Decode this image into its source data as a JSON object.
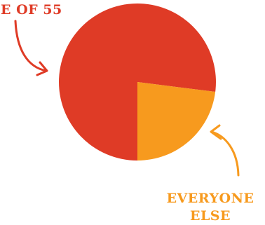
{
  "chart_data": {
    "type": "pie",
    "title": "",
    "slices": [
      {
        "label": "E OF 55",
        "value": 77,
        "color": "#DF3B26"
      },
      {
        "label": "EVERYONE ELSE",
        "value": 23,
        "color": "#F79A1E"
      }
    ],
    "annotations": [
      {
        "text": "E OF 55",
        "color": "#DF3B26"
      },
      {
        "lines": [
          "EVERYONE",
          "ELSE"
        ],
        "color": "#F79A1E"
      }
    ]
  }
}
